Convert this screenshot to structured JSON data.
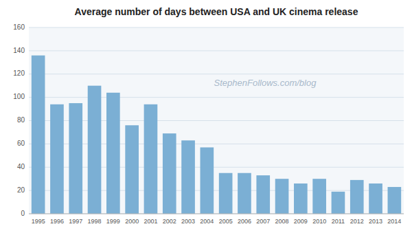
{
  "chart_data": {
    "type": "bar",
    "title": "Average number of days between USA and UK cinema release",
    "categories": [
      "1995",
      "1996",
      "1997",
      "1998",
      "1999",
      "2000",
      "2001",
      "2002",
      "2003",
      "2004",
      "2005",
      "2006",
      "2007",
      "2008",
      "2009",
      "2010",
      "2011",
      "2012",
      "2013",
      "2014"
    ],
    "values": [
      136,
      94,
      95,
      110,
      104,
      76,
      94,
      69,
      63,
      57,
      35,
      35,
      33,
      30,
      26,
      30,
      19,
      29,
      26,
      23
    ],
    "color": "#7bafd4",
    "ylim": [
      0,
      160
    ],
    "yticks": [
      0,
      20,
      40,
      60,
      80,
      100,
      120,
      140,
      160
    ],
    "grid": true,
    "annotations": [
      "StephenFollows.com/blog"
    ]
  }
}
